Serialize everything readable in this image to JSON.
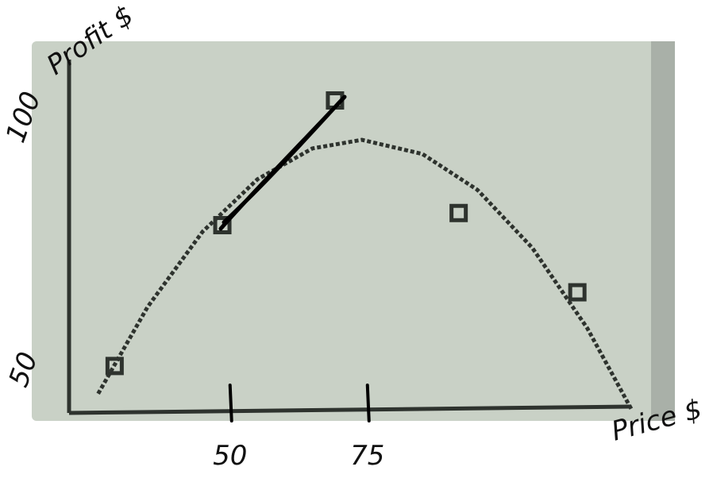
{
  "chart_data": {
    "type": "scatter",
    "x_label": "Price $",
    "y_label": "Profit $",
    "xlim": [
      21,
      123
    ],
    "ylim": [
      42,
      112
    ],
    "xticks": [
      50,
      75
    ],
    "yticks": [
      50,
      100
    ],
    "grid": false,
    "color": "#2e332e",
    "points": {
      "x": [
        29.0,
        48.6,
        69.1,
        91.6,
        113.2
      ],
      "y": [
        51.3,
        79.2,
        103.9,
        81.6,
        65.9
      ]
    },
    "curve": {
      "x": [
        26,
        35,
        45,
        55,
        65,
        74,
        85,
        95,
        105,
        115,
        123
      ],
      "y": [
        45.8,
        63.0,
        77.9,
        88.3,
        94.4,
        96.1,
        93.3,
        86.2,
        74.7,
        58.8,
        42.8
      ]
    }
  }
}
